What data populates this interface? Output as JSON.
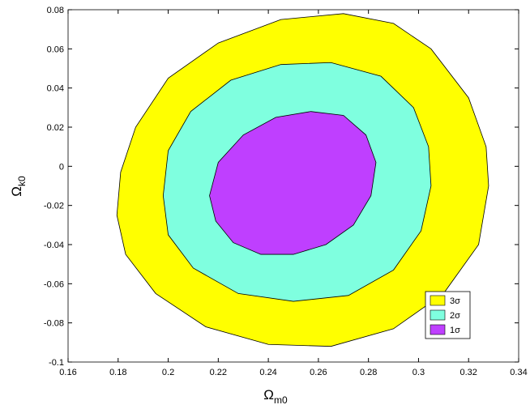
{
  "chart_data": {
    "type": "contour",
    "xlabel": "Ω",
    "xlabel_sub": "m0",
    "ylabel": "Ω",
    "ylabel_sub": "k0",
    "xlim": [
      0.16,
      0.34
    ],
    "xticks": [
      0.16,
      0.18,
      0.2,
      0.22,
      0.24,
      0.26,
      0.28,
      0.3,
      0.32,
      0.34
    ],
    "ylim": [
      -0.1,
      0.08
    ],
    "yticks": [
      -0.1,
      -0.08,
      -0.06,
      -0.04,
      -0.02,
      0,
      0.02,
      0.04,
      0.06,
      0.08
    ],
    "legend": "lower right",
    "series": [
      {
        "name": "3σ",
        "color": "#ffff00",
        "x": [
          0.1795,
          0.183,
          0.195,
          0.215,
          0.24,
          0.265,
          0.29,
          0.31,
          0.324,
          0.328,
          0.327,
          0.32,
          0.305,
          0.29,
          0.27,
          0.245,
          0.22,
          0.2,
          0.187,
          0.181
        ],
        "y": [
          -0.025,
          -0.045,
          -0.065,
          -0.082,
          -0.091,
          -0.092,
          -0.083,
          -0.065,
          -0.04,
          -0.01,
          0.01,
          0.035,
          0.06,
          0.073,
          0.078,
          0.075,
          0.063,
          0.045,
          0.02,
          -0.003
        ]
      },
      {
        "name": "2σ",
        "color": "#7fffdf",
        "x": [
          0.198,
          0.2,
          0.21,
          0.228,
          0.25,
          0.272,
          0.29,
          0.301,
          0.305,
          0.304,
          0.298,
          0.285,
          0.265,
          0.245,
          0.225,
          0.209,
          0.2
        ],
        "y": [
          -0.015,
          -0.035,
          -0.052,
          -0.065,
          -0.069,
          -0.066,
          -0.053,
          -0.033,
          -0.01,
          0.01,
          0.03,
          0.046,
          0.053,
          0.052,
          0.044,
          0.028,
          0.008
        ]
      },
      {
        "name": "1σ",
        "color": "#bf3fff",
        "x": [
          0.2165,
          0.219,
          0.226,
          0.237,
          0.25,
          0.263,
          0.274,
          0.281,
          0.283,
          0.279,
          0.27,
          0.257,
          0.243,
          0.23,
          0.22
        ],
        "y": [
          -0.015,
          -0.028,
          -0.039,
          -0.045,
          -0.045,
          -0.04,
          -0.03,
          -0.015,
          0.002,
          0.016,
          0.026,
          0.028,
          0.025,
          0.016,
          0.002
        ]
      }
    ]
  }
}
